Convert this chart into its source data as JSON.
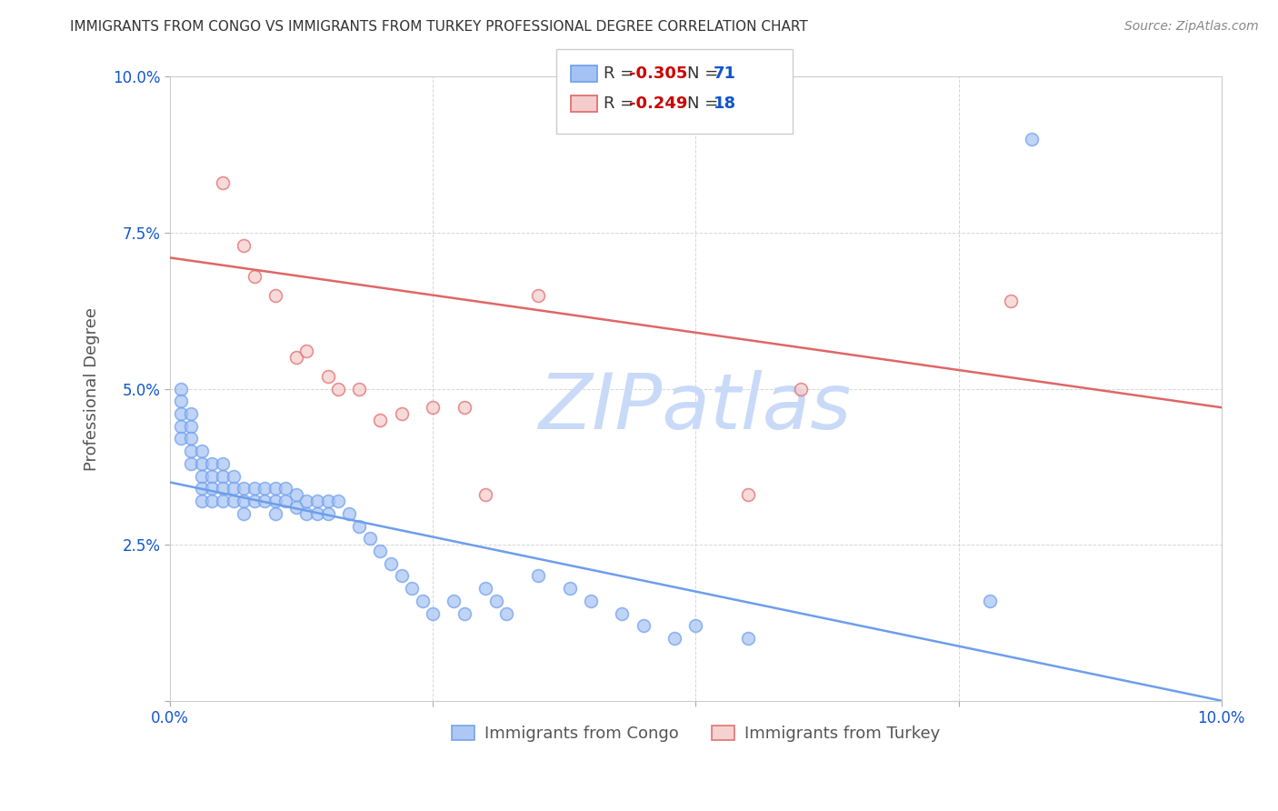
{
  "title": "IMMIGRANTS FROM CONGO VS IMMIGRANTS FROM TURKEY PROFESSIONAL DEGREE CORRELATION CHART",
  "source_text": "Source: ZipAtlas.com",
  "ylabel": "Professional Degree",
  "xlim": [
    0.0,
    0.1
  ],
  "ylim": [
    0.0,
    0.1
  ],
  "xticks": [
    0.0,
    0.025,
    0.05,
    0.075,
    0.1
  ],
  "yticks": [
    0.0,
    0.025,
    0.05,
    0.075,
    0.1
  ],
  "xtick_labels": [
    "0.0%",
    "",
    "",
    "",
    "10.0%"
  ],
  "ytick_labels": [
    "",
    "2.5%",
    "5.0%",
    "7.5%",
    "10.0%"
  ],
  "background_color": "#ffffff",
  "congo_color": "#a4c2f4",
  "turkey_color": "#f4cccc",
  "congo_edge_color": "#6d9eeb",
  "turkey_edge_color": "#e06666",
  "watermark_text": "ZIPatlas",
  "watermark_color": "#c9daf8",
  "legend_R_congo": "-0.305",
  "legend_N_congo": "71",
  "legend_R_turkey": "-0.249",
  "legend_N_turkey": "18",
  "legend_R_color": "#cc0000",
  "legend_N_color": "#1155cc",
  "congo_label": "Immigrants from Congo",
  "turkey_label": "Immigrants from Turkey",
  "congo_x": [
    0.001,
    0.001,
    0.001,
    0.001,
    0.001,
    0.002,
    0.002,
    0.002,
    0.002,
    0.002,
    0.003,
    0.003,
    0.003,
    0.003,
    0.003,
    0.004,
    0.004,
    0.004,
    0.004,
    0.005,
    0.005,
    0.005,
    0.005,
    0.006,
    0.006,
    0.006,
    0.007,
    0.007,
    0.007,
    0.008,
    0.008,
    0.009,
    0.009,
    0.01,
    0.01,
    0.01,
    0.011,
    0.011,
    0.012,
    0.012,
    0.013,
    0.013,
    0.014,
    0.014,
    0.015,
    0.015,
    0.016,
    0.017,
    0.018,
    0.019,
    0.02,
    0.021,
    0.022,
    0.023,
    0.024,
    0.025,
    0.027,
    0.028,
    0.03,
    0.031,
    0.032,
    0.035,
    0.038,
    0.04,
    0.043,
    0.045,
    0.048,
    0.05,
    0.055,
    0.078,
    0.082
  ],
  "congo_y": [
    0.05,
    0.048,
    0.046,
    0.044,
    0.042,
    0.046,
    0.044,
    0.042,
    0.04,
    0.038,
    0.04,
    0.038,
    0.036,
    0.034,
    0.032,
    0.038,
    0.036,
    0.034,
    0.032,
    0.038,
    0.036,
    0.034,
    0.032,
    0.036,
    0.034,
    0.032,
    0.034,
    0.032,
    0.03,
    0.034,
    0.032,
    0.034,
    0.032,
    0.034,
    0.032,
    0.03,
    0.034,
    0.032,
    0.033,
    0.031,
    0.032,
    0.03,
    0.032,
    0.03,
    0.032,
    0.03,
    0.032,
    0.03,
    0.028,
    0.026,
    0.024,
    0.022,
    0.02,
    0.018,
    0.016,
    0.014,
    0.016,
    0.014,
    0.018,
    0.016,
    0.014,
    0.02,
    0.018,
    0.016,
    0.014,
    0.012,
    0.01,
    0.012,
    0.01,
    0.016,
    0.09
  ],
  "turkey_x": [
    0.005,
    0.007,
    0.008,
    0.01,
    0.012,
    0.013,
    0.015,
    0.016,
    0.018,
    0.02,
    0.022,
    0.025,
    0.028,
    0.03,
    0.035,
    0.055,
    0.06,
    0.08
  ],
  "turkey_y": [
    0.083,
    0.073,
    0.068,
    0.065,
    0.055,
    0.056,
    0.052,
    0.05,
    0.05,
    0.045,
    0.046,
    0.047,
    0.047,
    0.033,
    0.065,
    0.033,
    0.05,
    0.064
  ],
  "congo_trendline_x": [
    0.0,
    0.1
  ],
  "congo_trendline_y": [
    0.035,
    0.0
  ],
  "turkey_trendline_x": [
    0.0,
    0.1
  ],
  "turkey_trendline_y": [
    0.071,
    0.047
  ]
}
